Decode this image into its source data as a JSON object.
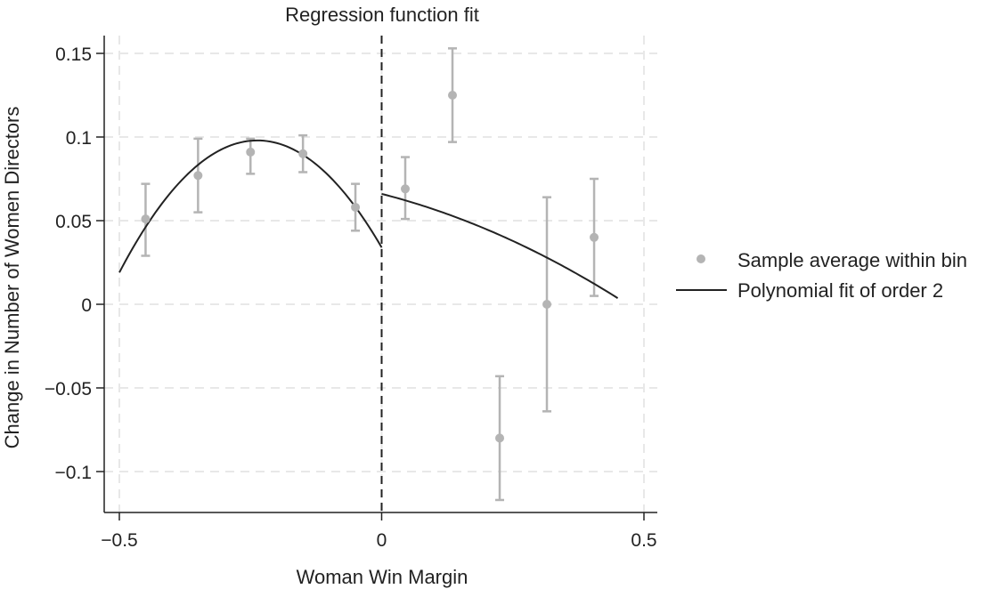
{
  "chart_data": {
    "type": "scatter",
    "title": "Regression function fit",
    "xlabel": "Woman Win Margin",
    "ylabel": "Change in Number of Women Directors",
    "xlim": [
      -0.5,
      0.5
    ],
    "ylim": [
      -0.125,
      0.16
    ],
    "x_ticks": [
      -0.5,
      0,
      0.5
    ],
    "x_tick_labels": [
      "−0.5",
      "0",
      "0.5"
    ],
    "y_ticks": [
      -0.1,
      -0.05,
      0,
      0.05,
      0.1,
      0.15
    ],
    "y_tick_labels": [
      "−0.1",
      "−0.05",
      "0",
      "0.05",
      "0.1",
      "0.15"
    ],
    "grid": true,
    "cutoff": 0,
    "legend_position": "right",
    "series": [
      {
        "name": "Sample average within bin",
        "kind": "points_with_error_bars",
        "color": "#b4b4b4",
        "points": [
          {
            "x": -0.45,
            "y": 0.051,
            "lo": 0.029,
            "hi": 0.072
          },
          {
            "x": -0.35,
            "y": 0.077,
            "lo": 0.055,
            "hi": 0.099
          },
          {
            "x": -0.25,
            "y": 0.091,
            "lo": 0.078,
            "hi": 0.099
          },
          {
            "x": -0.15,
            "y": 0.09,
            "lo": 0.079,
            "hi": 0.101
          },
          {
            "x": -0.05,
            "y": 0.058,
            "lo": 0.044,
            "hi": 0.072
          },
          {
            "x": 0.045,
            "y": 0.069,
            "lo": 0.051,
            "hi": 0.088
          },
          {
            "x": 0.135,
            "y": 0.125,
            "lo": 0.097,
            "hi": 0.153
          },
          {
            "x": 0.225,
            "y": -0.08,
            "lo": -0.117,
            "hi": -0.043
          },
          {
            "x": 0.315,
            "y": 0.0,
            "lo": -0.064,
            "hi": 0.064
          },
          {
            "x": 0.405,
            "y": 0.04,
            "lo": 0.005,
            "hi": 0.075
          }
        ]
      },
      {
        "name": "Polynomial fit of order 2",
        "kind": "line",
        "color": "#222222",
        "segments": [
          {
            "x_from": -0.5,
            "x_to": 0,
            "coef": [
              0.034,
              -0.54,
              -1.14
            ]
          },
          {
            "x_from": 0,
            "x_to": 0.45,
            "coef": [
              0.066,
              -0.08,
              -0.13
            ]
          }
        ]
      }
    ]
  }
}
